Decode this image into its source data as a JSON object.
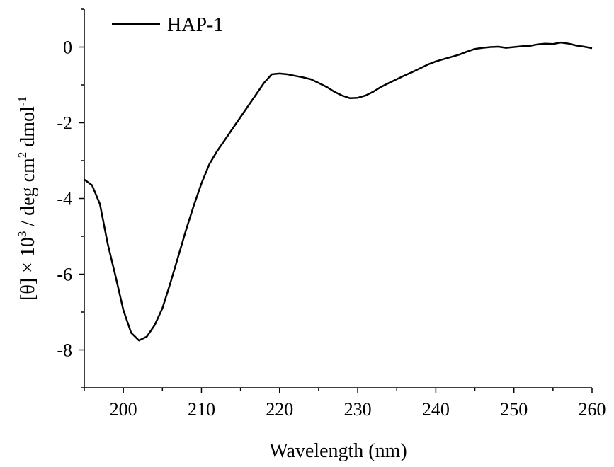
{
  "chart_data": {
    "type": "line",
    "title": "",
    "xlabel": "Wavelength (nm)",
    "ylabel": {
      "parts": [
        "[θ] × 10",
        "3",
        " / deg cm",
        "2",
        " dmol",
        "-1"
      ]
    },
    "xlim": [
      195,
      260
    ],
    "ylim": [
      -9,
      1
    ],
    "x_ticks": [
      200,
      210,
      220,
      230,
      240,
      250,
      260
    ],
    "y_ticks": [
      0,
      -2,
      -4,
      -6,
      -8
    ],
    "legend": {
      "position": "top-left"
    },
    "grid": false,
    "series": [
      {
        "name": "HAP-1",
        "color": "#000000",
        "x": [
          195,
          196,
          197,
          198,
          199,
          200,
          201,
          202,
          203,
          204,
          205,
          206,
          207,
          208,
          209,
          210,
          211,
          212,
          213,
          214,
          215,
          216,
          217,
          218,
          219,
          220,
          221,
          222,
          223,
          224,
          225,
          226,
          227,
          228,
          229,
          230,
          231,
          232,
          233,
          234,
          235,
          236,
          237,
          238,
          239,
          240,
          241,
          242,
          243,
          244,
          245,
          246,
          247,
          248,
          249,
          250,
          251,
          252,
          253,
          254,
          255,
          256,
          257,
          258,
          259,
          260
        ],
        "y": [
          -3.5,
          -3.65,
          -4.15,
          -5.2,
          -6.05,
          -6.95,
          -7.55,
          -7.75,
          -7.65,
          -7.35,
          -6.9,
          -6.25,
          -5.55,
          -4.85,
          -4.2,
          -3.6,
          -3.1,
          -2.75,
          -2.45,
          -2.15,
          -1.85,
          -1.55,
          -1.25,
          -0.95,
          -0.72,
          -0.7,
          -0.72,
          -0.76,
          -0.8,
          -0.85,
          -0.95,
          -1.05,
          -1.18,
          -1.28,
          -1.35,
          -1.34,
          -1.28,
          -1.18,
          -1.05,
          -0.95,
          -0.85,
          -0.75,
          -0.66,
          -0.56,
          -0.46,
          -0.38,
          -0.32,
          -0.26,
          -0.2,
          -0.12,
          -0.05,
          -0.02,
          0.0,
          0.01,
          -0.02,
          0.0,
          0.02,
          0.03,
          0.07,
          0.09,
          0.08,
          0.12,
          0.09,
          0.04,
          0.01,
          -0.03
        ]
      }
    ]
  }
}
